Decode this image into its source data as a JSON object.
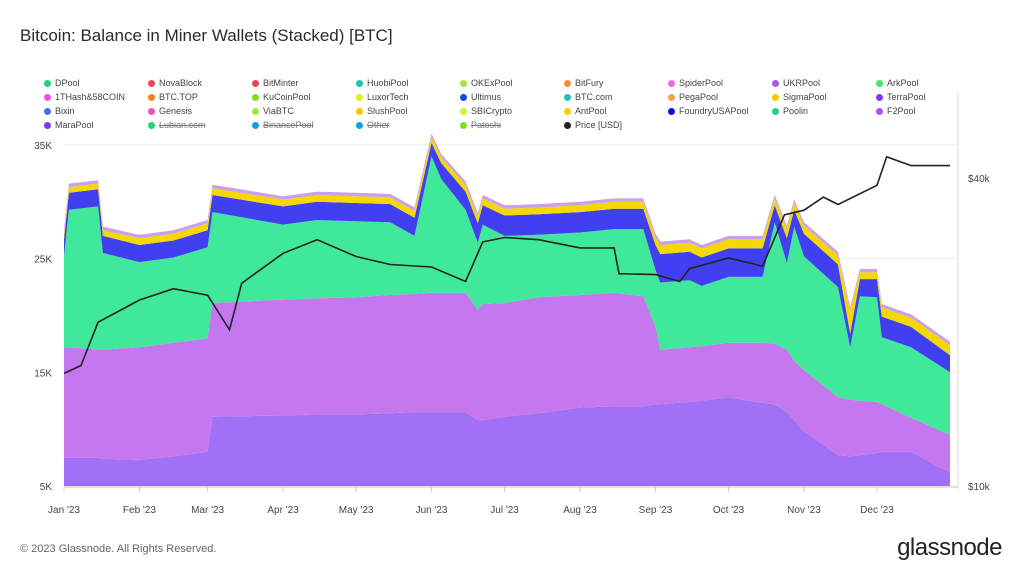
{
  "title": "Bitcoin: Balance in Miner Wallets (Stacked) [BTC]",
  "footer": "© 2023 Glassnode. All Rights Reserved.",
  "logo": "glassnode",
  "legend": [
    {
      "label": "DPool",
      "color": "#1ed67a",
      "visible": true
    },
    {
      "label": "NovaBlock",
      "color": "#f0435a",
      "visible": true
    },
    {
      "label": "BitMinter",
      "color": "#f0435a",
      "visible": true
    },
    {
      "label": "HuobiPool",
      "color": "#18c4b4",
      "visible": true
    },
    {
      "label": "OKExPool",
      "color": "#a6e63c",
      "visible": true
    },
    {
      "label": "BitFury",
      "color": "#f58c3a",
      "visible": true
    },
    {
      "label": "SpiderPool",
      "color": "#f566e6",
      "visible": true
    },
    {
      "label": "UKRPool",
      "color": "#b050e8",
      "visible": true
    },
    {
      "label": "ArkPool",
      "color": "#3de86a",
      "visible": true
    },
    {
      "label": "1THash&58COIN",
      "color": "#f050e0",
      "visible": true
    },
    {
      "label": "BTC.TOP",
      "color": "#f58020",
      "visible": true
    },
    {
      "label": "KuCoinPool",
      "color": "#7ee01c",
      "visible": true
    },
    {
      "label": "LuxorTech",
      "color": "#e0f020",
      "visible": true
    },
    {
      "label": "Ultimus",
      "color": "#1050d0",
      "visible": true
    },
    {
      "label": "BTC.com",
      "color": "#18c4b4",
      "visible": true
    },
    {
      "label": "PegaPool",
      "color": "#f5a050",
      "visible": true
    },
    {
      "label": "SigmaPool",
      "color": "#f5cc00",
      "visible": true
    },
    {
      "label": "TerraPool",
      "color": "#7040e8",
      "visible": true
    },
    {
      "label": "Bixin",
      "color": "#4070f0",
      "visible": true
    },
    {
      "label": "Genesis",
      "color": "#f050c0",
      "visible": true
    },
    {
      "label": "ViaBTC",
      "color": "#a0e840",
      "visible": true
    },
    {
      "label": "SlushPool",
      "color": "#f5c800",
      "visible": true
    },
    {
      "label": "SBICrypto",
      "color": "#d8f030",
      "visible": true
    },
    {
      "label": "AntPool",
      "color": "#f5d000",
      "visible": true
    },
    {
      "label": "FoundryUSAPool",
      "color": "#0010e0",
      "visible": true
    },
    {
      "label": "Poolin",
      "color": "#1ed67a",
      "visible": true
    },
    {
      "label": "F2Pool",
      "color": "#b050f0",
      "visible": true
    },
    {
      "label": "MaraPool",
      "color": "#7040e8",
      "visible": true
    },
    {
      "label": "Lubian.com",
      "color": "#1ed67a",
      "visible": false
    },
    {
      "label": "BinancePool",
      "color": "#10a0e8",
      "visible": false
    },
    {
      "label": "Other",
      "color": "#10a0e8",
      "visible": false
    },
    {
      "label": "Patoshi",
      "color": "#80e020",
      "visible": false
    },
    {
      "label": "Price [USD]",
      "color": "#222222",
      "visible": true
    }
  ],
  "chart_data": {
    "type": "area",
    "stacked": true,
    "title": "Bitcoin: Balance in Miner Wallets (Stacked) [BTC]",
    "x_ticks": [
      "Jan '23",
      "Feb '23",
      "Mar '23",
      "Apr '23",
      "May '23",
      "Jun '23",
      "Jul '23",
      "Aug '23",
      "Sep '23",
      "Oct '23",
      "Nov '23",
      "Dec '23"
    ],
    "x_tick_dates": [
      "2023-01-01",
      "2023-02-01",
      "2023-03-01",
      "2023-04-01",
      "2023-05-01",
      "2023-06-01",
      "2023-07-01",
      "2023-08-01",
      "2023-09-01",
      "2023-10-01",
      "2023-11-01",
      "2023-12-01"
    ],
    "xlim": [
      "2023-01-01",
      "2023-12-31"
    ],
    "y_left": {
      "ticks": [
        "5K",
        "15K",
        "25K",
        "35K"
      ],
      "tick_values": [
        5000,
        15000,
        25000,
        35000
      ],
      "range": [
        5000,
        37000
      ]
    },
    "y_right": {
      "ticks": [
        "$10k",
        "$40k"
      ],
      "tick_values": [
        10000,
        40000
      ],
      "scale": "log"
    },
    "grid": true,
    "legend_position": "top",
    "dates": [
      "2023-01-01",
      "2023-01-03",
      "2023-01-15",
      "2023-01-17",
      "2023-02-01",
      "2023-02-15",
      "2023-03-01",
      "2023-03-03",
      "2023-04-01",
      "2023-04-15",
      "2023-05-01",
      "2023-05-15",
      "2023-05-25",
      "2023-06-01",
      "2023-06-05",
      "2023-06-15",
      "2023-06-20",
      "2023-06-22",
      "2023-07-01",
      "2023-07-15",
      "2023-08-01",
      "2023-08-15",
      "2023-08-27",
      "2023-09-01",
      "2023-09-03",
      "2023-09-15",
      "2023-09-20",
      "2023-10-01",
      "2023-10-15",
      "2023-10-20",
      "2023-10-25",
      "2023-10-28",
      "2023-11-01",
      "2023-11-15",
      "2023-11-20",
      "2023-11-24",
      "2023-12-01",
      "2023-12-03",
      "2023-12-15",
      "2023-12-31"
    ],
    "series": [
      {
        "name": "MaraPool",
        "color": "#a070f5",
        "values": [
          7500,
          7500,
          7500,
          7400,
          7300,
          7600,
          8000,
          11100,
          11200,
          11300,
          11300,
          11400,
          11500,
          11500,
          11500,
          11500,
          10800,
          10800,
          11100,
          11400,
          11900,
          12000,
          12000,
          12200,
          12200,
          12400,
          12500,
          12800,
          12300,
          12200,
          11500,
          10800,
          9800,
          7700,
          7600,
          7700,
          7900,
          8000,
          8000,
          6200
        ]
      },
      {
        "name": "F2Pool",
        "color": "#c577f0",
        "values": [
          9700,
          9700,
          9500,
          9600,
          9900,
          10000,
          10000,
          10000,
          10200,
          10200,
          10300,
          10400,
          10400,
          10500,
          10500,
          10500,
          9700,
          10200,
          10000,
          10200,
          9900,
          10000,
          9700,
          6800,
          4800,
          4800,
          4800,
          4800,
          5300,
          5300,
          5500,
          5200,
          5400,
          5100,
          5000,
          4800,
          4500,
          4200,
          3000,
          3300
        ]
      },
      {
        "name": "Poolin",
        "color": "#40e89a",
        "values": [
          8000,
          12100,
          12600,
          8500,
          7500,
          7500,
          8000,
          8000,
          6600,
          6900,
          6700,
          6400,
          5100,
          12000,
          10000,
          7300,
          5900,
          7000,
          5900,
          5500,
          5500,
          5600,
          5900,
          5000,
          5900,
          5900,
          5300,
          5800,
          5800,
          10700,
          7600,
          11800,
          10000,
          9700,
          4600,
          9200,
          9200,
          5900,
          6200,
          5500
        ]
      },
      {
        "name": "FoundryUSAPool",
        "color": "#4040f0",
        "values": [
          1500,
          1500,
          1500,
          1500,
          1500,
          1500,
          1500,
          1500,
          1600,
          1600,
          1600,
          1600,
          1600,
          1200,
          1400,
          1600,
          1700,
          1700,
          1800,
          1800,
          1800,
          1800,
          1800,
          2200,
          2500,
          2500,
          2500,
          2500,
          2500,
          1500,
          2200,
          1500,
          2000,
          2000,
          1200,
          1500,
          1600,
          1800,
          1800,
          1500
        ]
      },
      {
        "name": "AntPool",
        "color": "#f5d800",
        "values": [
          500,
          500,
          500,
          500,
          600,
          600,
          600,
          600,
          600,
          600,
          600,
          600,
          600,
          500,
          500,
          600,
          600,
          600,
          600,
          600,
          600,
          600,
          600,
          700,
          800,
          800,
          800,
          800,
          800,
          600,
          800,
          600,
          700,
          800,
          2000,
          600,
          600,
          800,
          800,
          900
        ]
      },
      {
        "name": "Other pools",
        "color": "#c8a0f0",
        "values": [
          300,
          300,
          300,
          300,
          300,
          300,
          300,
          300,
          300,
          300,
          300,
          300,
          300,
          300,
          300,
          300,
          300,
          300,
          300,
          300,
          300,
          300,
          300,
          300,
          300,
          300,
          300,
          300,
          300,
          300,
          300,
          300,
          300,
          300,
          300,
          300,
          300,
          300,
          300,
          300
        ]
      }
    ],
    "price": {
      "name": "Price [USD]",
      "color": "#222222",
      "dates": [
        "2023-01-01",
        "2023-01-08",
        "2023-01-15",
        "2023-02-01",
        "2023-02-15",
        "2023-03-01",
        "2023-03-10",
        "2023-03-15",
        "2023-04-01",
        "2023-04-15",
        "2023-05-01",
        "2023-05-15",
        "2023-06-01",
        "2023-06-15",
        "2023-06-22",
        "2023-07-01",
        "2023-07-15",
        "2023-08-01",
        "2023-08-15",
        "2023-08-17",
        "2023-09-01",
        "2023-09-11",
        "2023-09-15",
        "2023-10-01",
        "2023-10-15",
        "2023-10-24",
        "2023-11-01",
        "2023-11-09",
        "2023-11-15",
        "2023-12-01",
        "2023-12-05",
        "2023-12-15",
        "2023-12-31"
      ],
      "values": [
        16600,
        17200,
        20900,
        23100,
        24300,
        23600,
        20200,
        24900,
        28500,
        30300,
        28100,
        27100,
        26800,
        25100,
        30000,
        30600,
        30300,
        29200,
        29200,
        26000,
        25900,
        25100,
        26600,
        27900,
        26900,
        33900,
        34600,
        36700,
        35500,
        38700,
        44000,
        42300,
        42300
      ]
    }
  }
}
